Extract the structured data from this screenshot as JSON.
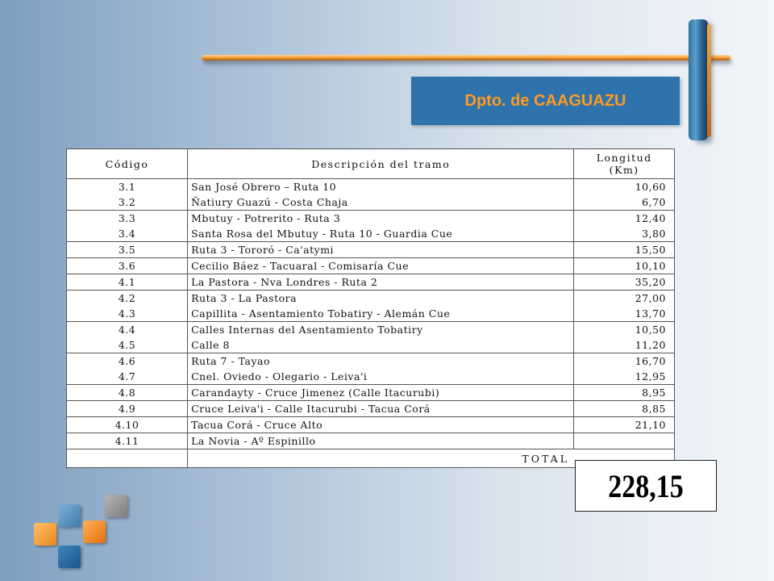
{
  "header": {
    "title": "Dpto. de CAAGUAZU"
  },
  "table": {
    "columns": {
      "code": "Código",
      "description": "Descripción del tramo",
      "length_line1": "Longitud",
      "length_line2": "(Km)"
    },
    "rows": [
      {
        "code": "3.1",
        "description": "San José Obrero – Ruta 10",
        "length": "10,60"
      },
      {
        "code": "3.2",
        "description": "Ñatiury Guazú - Costa Chaja",
        "length": "6,70"
      },
      {
        "code": "3.3",
        "description": "Mbutuy - Potrerito - Ruta 3",
        "length": "12,40"
      },
      {
        "code": "3.4",
        "description": "Santa Rosa del Mbutuy - Ruta 10 - Guardia Cue",
        "length": "3,80"
      },
      {
        "code": "3.5",
        "description": "Ruta 3 - Tororó - Ca'atymi",
        "length": "15,50"
      },
      {
        "code": "3.6",
        "description": "Cecilio Báez - Tacuaral - Comisaría Cue",
        "length": "10,10"
      },
      {
        "code": "4.1",
        "description": "La Pastora - Nva Londres - Ruta 2",
        "length": "35,20"
      },
      {
        "code": "4.2",
        "description": "Ruta 3 - La Pastora",
        "length": "27,00"
      },
      {
        "code": "4.3",
        "description": "Capillita - Asentamiento Tobatiry - Alemán Cue",
        "length": "13,70"
      },
      {
        "code": "4.4",
        "description": "Calles Internas del Asentamiento Tobatiry",
        "length": "10,50"
      },
      {
        "code": "4.5",
        "description": "Calle 8",
        "length": "11,20"
      },
      {
        "code": "4.6",
        "description": "Ruta 7 - Tayao",
        "length": "16,70"
      },
      {
        "code": "4.7",
        "description": "Cnel. Oviedo - Olegario - Leiva'i",
        "length": "12,95"
      },
      {
        "code": "4.8",
        "description": "Carandayty - Cruce Jimenez (Calle Itacurubi)",
        "length": "8,95"
      },
      {
        "code": "4.9",
        "description": "Cruce Leiva'i - Calle Itacurubi - Tacua Corá",
        "length": "8,85"
      },
      {
        "code": "4.10",
        "description": "Tacua Corá - Cruce Alto",
        "length": "21,10"
      },
      {
        "code": "4.11",
        "description": "La Novia - Aº Espinillo",
        "length": ""
      }
    ],
    "total_label": "TOTAL",
    "total_value": "228,15"
  }
}
